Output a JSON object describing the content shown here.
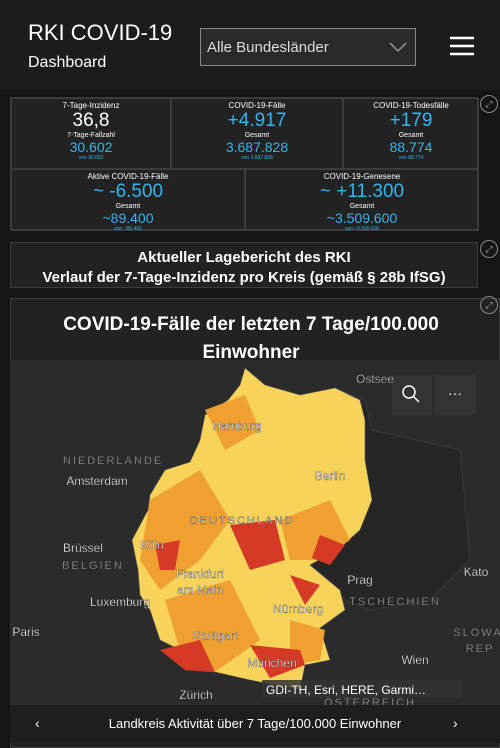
{
  "header": {
    "title": "RKI COVID-19",
    "subtitle": "Dashboard",
    "dropdown": "Alle Bundesländer"
  },
  "stats": [
    {
      "label": "7-Tage-Inzidenz",
      "value": "36,8",
      "sub_label": "7-Tage-Fallzahl",
      "sub_value": "30.602",
      "note": "von 30.602"
    },
    {
      "label": "COVID-19-Fälle",
      "value": "+4.917",
      "sub_label": "Gesamt",
      "sub_value": "3.687.828",
      "note": "von 3.687.828"
    },
    {
      "label": "COVID-19-Todesfälle",
      "value": "+179",
      "sub_label": "Gesamt",
      "sub_value": "88.774",
      "note": "von 88.774"
    },
    {
      "label": "Aktive COVID-19-Fälle",
      "value": "~ -6.500",
      "sub_label": "Gesamt",
      "sub_value": "~89.400",
      "note": "von ~89.400"
    },
    {
      "label": "COVID-19-Genesene",
      "value": "~ +11.300",
      "sub_label": "Gesamt",
      "sub_value": "~3.509.600",
      "note": "von ~3.509.600"
    }
  ],
  "report": {
    "title": "Aktueller Lagebericht des RKI",
    "subtitle": "Verlauf der 7-Tage-Inzidenz pro Kreis (gemäß § 28b IfSG)"
  },
  "map": {
    "title": "COVID-19-Fälle der letzten 7 Tage/100.000 Einwohner",
    "labels": [
      "Ostsee",
      "Hamburg",
      "NIEDERLANDE",
      "Amsterdam",
      "Berlin",
      "DEUTSCHLAND",
      "Brüssel",
      "BELGIEN",
      "Köln",
      "Frankfurt",
      "am Main",
      "Prag",
      "Kato",
      "Luxemburg",
      "Nürnberg",
      "TSCHECHIEN",
      "Paris",
      "SLOWA",
      "REP",
      "Stuttgart",
      "Wien",
      "München",
      "Zürich",
      "ÖSTERREICH"
    ],
    "attribution": "GDI-TH, Esri, HERE, Garmi…",
    "footer": "Landkreis Aktivität über 7 Tage/100.000 Einwohner"
  }
}
